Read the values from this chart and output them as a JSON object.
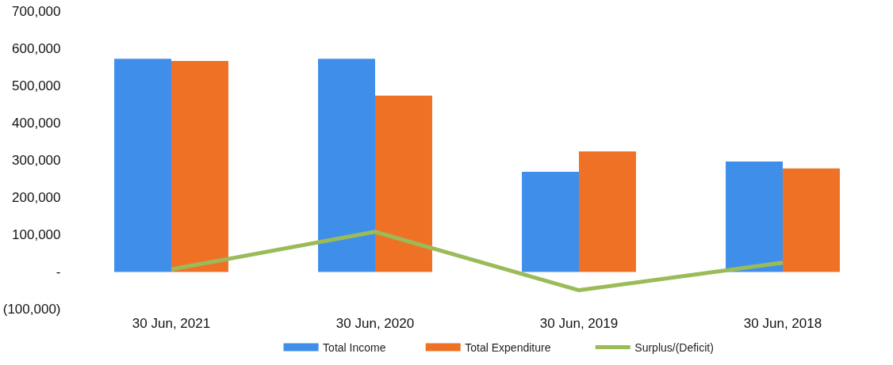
{
  "chart_data": {
    "type": "bar",
    "categories": [
      "30 Jun, 2021",
      "30 Jun, 2020",
      "30 Jun, 2019",
      "30 Jun, 2018"
    ],
    "series": [
      {
        "name": "Total Income",
        "color": "#3f8fea",
        "values": [
          573000,
          573000,
          269000,
          297000
        ]
      },
      {
        "name": "Total Expenditure",
        "color": "#ef7126",
        "values": [
          567000,
          474000,
          324000,
          278000
        ]
      },
      {
        "name": "Surplus/(Deficit)",
        "type": "line",
        "color": "#9bbb59",
        "values": [
          7000,
          108000,
          -49000,
          25000
        ]
      }
    ],
    "ylim": [
      -100000,
      700000
    ],
    "yticks": [
      {
        "value": -100000,
        "label": "(100,000)"
      },
      {
        "value": 0,
        "label": "-"
      },
      {
        "value": 100000,
        "label": "100,000"
      },
      {
        "value": 200000,
        "label": "200,000"
      },
      {
        "value": 300000,
        "label": "300,000"
      },
      {
        "value": 400000,
        "label": "400,000"
      },
      {
        "value": 500000,
        "label": "500,000"
      },
      {
        "value": 600000,
        "label": "600,000"
      },
      {
        "value": 700000,
        "label": "700,000"
      }
    ],
    "grid": false,
    "legend": "bottom"
  }
}
